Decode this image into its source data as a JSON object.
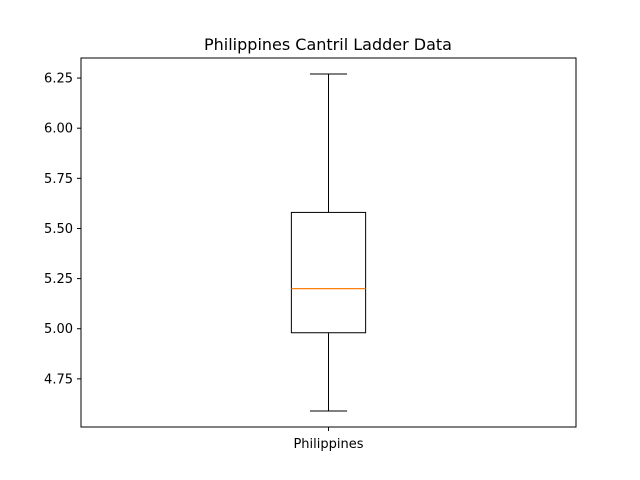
{
  "chart_data": {
    "type": "box",
    "title": "Philippines Cantril Ladder Data",
    "xlabel": "",
    "ylabel": "",
    "categories": [
      "Philippines"
    ],
    "series": [
      {
        "name": "Philippines",
        "whisker_low": 4.59,
        "q1": 4.98,
        "median": 5.2,
        "q3": 5.58,
        "whisker_high": 6.27
      }
    ],
    "y_ticks": [
      4.75,
      5.0,
      5.25,
      5.5,
      5.75,
      6.0,
      6.25
    ],
    "y_tick_labels": [
      "4.75",
      "5.00",
      "5.25",
      "5.50",
      "5.75",
      "6.00",
      "6.25"
    ],
    "ylim": [
      4.51,
      6.35
    ],
    "grid": false,
    "colors": {
      "box": "#000000",
      "median": "#ff7f0e",
      "whisker": "#000000",
      "axes": "#000000",
      "background": "#ffffff"
    }
  }
}
